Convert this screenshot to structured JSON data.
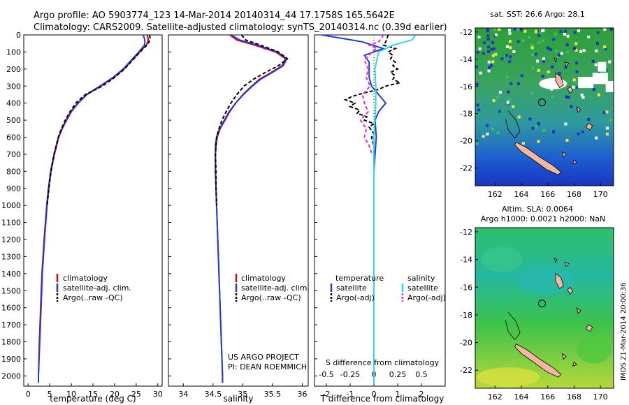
{
  "header": {
    "line1": "Argo profile: AO 5903774_123 14-Mar-2014 20140314_44 17.1758S 165.5642E",
    "line2": "Climatology: CARS2009. Satellite-adjusted climatology: synTS_20140314.nc (0.39d earlier)"
  },
  "depth_ticks": [
    0,
    100,
    200,
    300,
    400,
    500,
    600,
    700,
    800,
    900,
    1000,
    1100,
    1200,
    1300,
    1400,
    1500,
    1600,
    1700,
    1800,
    1900,
    2000
  ],
  "colors": {
    "climatology": "#e8000b",
    "satellite": "#1f3dd6",
    "argo": "#000000",
    "sat_salinity": "#2fd5e8",
    "argo_salinity": "#e22ee0"
  },
  "chart_data": [
    {
      "type": "line",
      "name": "temperature",
      "xlabel": "temperature (deg C)",
      "xlim": [
        -1,
        31
      ],
      "ylim": [
        0,
        2060
      ],
      "xticks": [
        0,
        5,
        10,
        15,
        20,
        25,
        30
      ],
      "legend": [
        "climatology",
        "satellite-adj. clim.",
        "Argo(..raw -QC)"
      ],
      "series": [
        {
          "name": "climatology",
          "depth": [
            0,
            20,
            40,
            60,
            100,
            150,
            200,
            250,
            300,
            350,
            400,
            450,
            500,
            550,
            600,
            700,
            800,
            900,
            1000,
            1200,
            1400,
            1600,
            1800,
            2000,
            2040
          ],
          "values": [
            27.5,
            27.8,
            27.7,
            27.3,
            25.8,
            24.0,
            22.2,
            19.8,
            16.8,
            13.6,
            11.6,
            10.0,
            8.9,
            7.9,
            7.1,
            6.1,
            5.3,
            4.8,
            4.4,
            3.8,
            3.3,
            3.0,
            2.7,
            2.4,
            2.4
          ]
        },
        {
          "name": "satellite",
          "depth": [
            0,
            20,
            40,
            60,
            100,
            150,
            200,
            250,
            300,
            350,
            400,
            450,
            500,
            550,
            600,
            700,
            800,
            900,
            1000,
            1200,
            1400,
            1600,
            1800,
            2000,
            2040
          ],
          "values": [
            26.6,
            26.9,
            27.0,
            26.9,
            25.6,
            23.8,
            22.0,
            19.6,
            16.6,
            13.5,
            11.5,
            9.9,
            8.8,
            7.8,
            7.0,
            6.0,
            5.2,
            4.7,
            4.3,
            3.7,
            3.2,
            2.9,
            2.6,
            2.4,
            2.4
          ]
        },
        {
          "name": "argo",
          "depth": [
            0,
            20,
            40,
            60,
            100,
            150,
            200,
            250,
            300,
            350,
            400,
            450,
            500,
            550,
            600,
            700,
            800,
            900,
            1000
          ],
          "values": [
            28.1,
            28.2,
            28.0,
            27.5,
            25.9,
            24.1,
            22.3,
            20.0,
            17.2,
            13.2,
            11.0,
            9.7,
            8.6,
            7.7,
            7.0,
            6.0,
            5.3,
            4.8,
            4.4
          ]
        }
      ]
    },
    {
      "type": "line",
      "name": "salinity",
      "xlabel": "salinity",
      "xlim": [
        33.75,
        36.1
      ],
      "ylim": [
        0,
        2060
      ],
      "xticks": [
        34,
        34.5,
        35,
        35.5,
        36
      ],
      "xticklabels": [
        "34",
        "34.5",
        "35",
        "35.5",
        "36"
      ],
      "legend": [
        "climatology",
        "satellite-adj. clim.",
        "Argo(..raw -QC)"
      ],
      "credits": [
        "US ARGO PROJECT",
        "PI: DEAN ROEMMICH"
      ],
      "series": [
        {
          "name": "climatology",
          "depth": [
            0,
            30,
            60,
            100,
            140,
            180,
            220,
            260,
            300,
            350,
            400,
            450,
            500,
            550,
            600,
            650,
            700,
            800,
            900,
            1000,
            1200,
            1400,
            1600,
            1800,
            2000,
            2040
          ],
          "values": [
            34.78,
            34.9,
            35.2,
            35.55,
            35.72,
            35.66,
            35.48,
            35.28,
            35.15,
            35.0,
            34.88,
            34.78,
            34.7,
            34.62,
            34.57,
            34.55,
            34.54,
            34.54,
            34.55,
            34.56,
            34.58,
            34.6,
            34.62,
            34.64,
            34.66,
            34.66
          ]
        },
        {
          "name": "satellite",
          "depth": [
            0,
            30,
            60,
            100,
            140,
            180,
            220,
            260,
            300,
            350,
            400,
            450,
            500,
            550,
            600,
            650,
            700,
            800,
            900,
            1000,
            1200,
            1400,
            1600,
            1800,
            2000,
            2040
          ],
          "values": [
            34.8,
            34.95,
            35.25,
            35.58,
            35.74,
            35.68,
            35.5,
            35.3,
            35.16,
            35.01,
            34.88,
            34.77,
            34.69,
            34.61,
            34.56,
            34.54,
            34.54,
            34.54,
            34.55,
            34.56,
            34.58,
            34.6,
            34.62,
            34.64,
            34.66,
            34.66
          ]
        },
        {
          "name": "argo",
          "depth": [
            0,
            30,
            60,
            100,
            140,
            180,
            220,
            260,
            300,
            350,
            400,
            450,
            500,
            550,
            600,
            650,
            700,
            800,
            900,
            1000
          ],
          "values": [
            34.98,
            35.05,
            35.3,
            35.6,
            35.75,
            35.6,
            35.38,
            35.18,
            35.02,
            34.9,
            34.8,
            34.72,
            34.65,
            34.6,
            34.56,
            34.55,
            34.54,
            34.55,
            34.55,
            34.56
          ]
        }
      ]
    },
    {
      "type": "line",
      "name": "difference",
      "xlabel": "T difference from climatology",
      "xlabel_top": "S difference from climatology",
      "xlim": [
        -2.5,
        3
      ],
      "ylim": [
        0,
        2060
      ],
      "xticks": [
        -2,
        -1,
        0,
        1,
        2
      ],
      "xticks_top": [
        -0.5,
        -0.25,
        0,
        0.25,
        0.5
      ],
      "legend_headers": [
        "temperature",
        "salinity"
      ],
      "legend": [
        "satellite",
        "Argo(-adj)",
        "satellite",
        "Argo(-adj)"
      ],
      "series": [
        {
          "name": "temperature satellite",
          "depth": [
            0,
            40,
            80,
            120,
            160,
            200,
            250,
            300,
            350,
            400,
            450,
            500,
            600,
            700,
            800,
            900,
            1000,
            1200,
            1400,
            1600,
            1800,
            2000,
            2040
          ],
          "values": [
            -2.2,
            -0.5,
            0.4,
            -0.4,
            -0.2,
            -0.2,
            -0.2,
            -0.1,
            0.2,
            0.5,
            0.2,
            0.05,
            0.1,
            0.05,
            0.0,
            0.0,
            0.0,
            0.0,
            0.0,
            0.0,
            0.0,
            0.0,
            0.0
          ]
        },
        {
          "name": "temperature argo",
          "depth": [
            0,
            40,
            60,
            80,
            100,
            120,
            140,
            160,
            180,
            200,
            220,
            240,
            260,
            280,
            300,
            320,
            340,
            360,
            380,
            400,
            420,
            440,
            460,
            480,
            500,
            520,
            540,
            560,
            580,
            600,
            650,
            700
          ],
          "values": [
            0.6,
            0.5,
            0.4,
            0.9,
            0.6,
            0.8,
            0.7,
            0.9,
            0.8,
            1.0,
            0.7,
            0.9,
            0.8,
            1.1,
            0.5,
            0.2,
            -0.4,
            -0.9,
            -1.2,
            -0.8,
            -1.0,
            -0.6,
            -0.7,
            -0.3,
            -0.4,
            0.0,
            -0.2,
            -0.1,
            0.0,
            -0.1,
            0.0,
            0.0
          ]
        },
        {
          "name": "salinity satellite",
          "depth": [
            0,
            30,
            60,
            100,
            150,
            200,
            300,
            400,
            500,
            600,
            700,
            800,
            1000,
            1200,
            1400,
            1600,
            1800,
            2000,
            2040
          ],
          "values": [
            0.44,
            0.4,
            0.2,
            0.05,
            0.03,
            0.01,
            0.02,
            0.02,
            0.01,
            0.0,
            0.0,
            0.0,
            0.0,
            0.0,
            0.0,
            0.0,
            0.0,
            0.0,
            0.0
          ]
        },
        {
          "name": "salinity argo",
          "depth": [
            0,
            20,
            40,
            60,
            80,
            100,
            150,
            200,
            250,
            300,
            350,
            400,
            450,
            500,
            550,
            600,
            650,
            700
          ],
          "values": [
            0.1,
            0.08,
            0.05,
            -0.05,
            0.03,
            -0.02,
            -0.1,
            -0.06,
            -0.08,
            -0.04,
            -0.12,
            -0.1,
            -0.06,
            -0.14,
            -0.08,
            -0.1,
            -0.05,
            -0.02
          ]
        }
      ]
    },
    {
      "type": "heatmap",
      "name": "sst_map",
      "title": "sat. SST: 26.6  Argo: 28.1",
      "xlim": [
        160.5,
        171
      ],
      "ylim": [
        -23.3,
        -11.7
      ],
      "xticks": [
        162,
        164,
        166,
        168,
        170
      ],
      "yticks": [
        -12,
        -14,
        -16,
        -18,
        -20,
        -22
      ],
      "argo_lon": 165.5642,
      "argo_lat": -17.1758
    },
    {
      "type": "heatmap",
      "name": "sla_map",
      "title": "Altim. SLA: 0.0064",
      "subtitle": "Argo h1000: 0.0021 h2000: NaN",
      "xlim": [
        160.5,
        171
      ],
      "ylim": [
        -23.3,
        -11.7
      ],
      "xticks": [
        162,
        164,
        166,
        168,
        170
      ],
      "yticks": [
        -12,
        -14,
        -16,
        -18,
        -20,
        -22
      ],
      "argo_lon": 165.5642,
      "argo_lat": -17.1758
    }
  ],
  "side_text": "IMOS 21-Mar-2014 20:00:36"
}
